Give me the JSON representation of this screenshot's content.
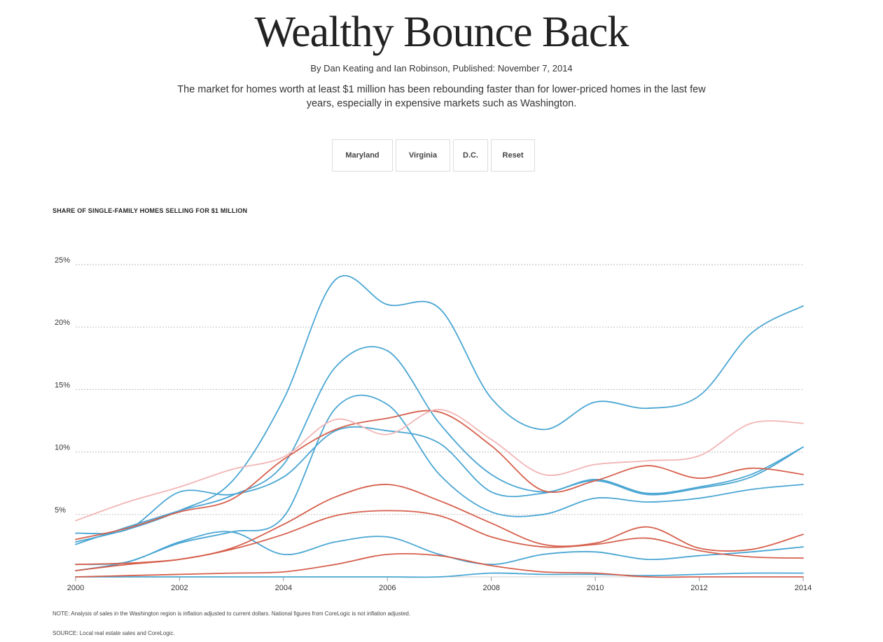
{
  "header": {
    "title": "Wealthy Bounce Back",
    "byline": "By Dan Keating and Ian Robinson, Published: November 7, 2014",
    "dek": "The market for homes worth at least $1 million has been rebounding faster than for lower-priced homes in the last few years, especially in expensive markets such as Washington."
  },
  "filters": [
    "Maryland",
    "Virginia",
    "D.C.",
    "Reset"
  ],
  "chart_label": "SHARE OF SINGLE-FAMILY HOMES SELLING FOR $1 MILLION",
  "footer": {
    "note": "NOTE: Analysis of sales in the Washington region is inflation adjusted to current dollars. National figures from CoreLogic is not inflation adjusted.",
    "source": "SOURCE: Local real estate sales and CoreLogic."
  },
  "chart_data": {
    "type": "line",
    "title": "SHARE OF SINGLE-FAMILY HOMES SELLING FOR $1 MILLION",
    "xlabel": "",
    "ylabel": "",
    "xlim": [
      2000,
      2014
    ],
    "ylim": [
      0,
      25
    ],
    "x_ticks": [
      2000,
      2002,
      2004,
      2006,
      2008,
      2010,
      2012,
      2014
    ],
    "x_tick_labels": [
      "2000",
      "2002",
      "2004",
      "2006",
      "2008",
      "2010",
      "2012",
      "2014"
    ],
    "y_ticks": [
      5,
      10,
      15,
      20,
      25
    ],
    "y_tick_labels": [
      "5%",
      "10%",
      "15%",
      "20%",
      "25%"
    ],
    "grid": "horizontal dotted",
    "colors": {
      "blue": "#4aa6d3",
      "red": "#d6604d",
      "pink": "#f2b5b5"
    },
    "x": [
      2000,
      2001,
      2002,
      2003,
      2004,
      2005,
      2006,
      2007,
      2008,
      2009,
      2010,
      2011,
      2012,
      2013,
      2014
    ],
    "series": [
      {
        "color": "blue",
        "values": [
          2.8,
          3.8,
          5.3,
          7.6,
          14.2,
          23.8,
          21.8,
          21.5,
          14.3,
          11.8,
          14.0,
          13.5,
          14.5,
          19.5,
          21.7
        ]
      },
      {
        "color": "blue",
        "values": [
          2.6,
          4.0,
          5.3,
          6.5,
          9.0,
          16.8,
          18.1,
          12.3,
          8.2,
          6.8,
          7.8,
          6.7,
          7.2,
          8.2,
          10.4
        ]
      },
      {
        "color": "blue",
        "values": [
          0.5,
          1.2,
          2.7,
          3.6,
          4.8,
          13.5,
          13.8,
          8.2,
          5.2,
          5.0,
          6.3,
          6.0,
          6.3,
          7.0,
          7.4
        ]
      },
      {
        "color": "blue",
        "values": [
          3.5,
          3.8,
          6.8,
          6.6,
          8.0,
          11.7,
          11.7,
          10.7,
          6.8,
          6.7,
          7.7,
          6.6,
          7.1,
          8.0,
          10.4
        ]
      },
      {
        "color": "blue",
        "values": [
          1.0,
          1.2,
          2.8,
          3.6,
          1.8,
          2.8,
          3.2,
          1.8,
          1.0,
          1.8,
          2.0,
          1.4,
          1.7,
          2.0,
          2.4
        ]
      },
      {
        "color": "blue",
        "values": [
          0.0,
          0.0,
          0.0,
          0.0,
          0.0,
          0.0,
          0.0,
          0.0,
          0.3,
          0.2,
          0.2,
          0.1,
          0.2,
          0.3,
          0.3
        ]
      },
      {
        "color": "red",
        "values": [
          3.0,
          3.9,
          5.2,
          6.2,
          9.4,
          11.8,
          12.7,
          13.2,
          10.5,
          6.9,
          7.7,
          8.9,
          7.9,
          8.7,
          8.2
        ]
      },
      {
        "color": "red",
        "values": [
          0.5,
          1.0,
          1.4,
          2.3,
          4.2,
          6.4,
          7.4,
          6.1,
          4.3,
          2.6,
          2.7,
          4.0,
          2.3,
          2.2,
          3.4
        ]
      },
      {
        "color": "red",
        "values": [
          1.0,
          1.1,
          1.4,
          2.2,
          3.4,
          4.9,
          5.3,
          4.9,
          3.2,
          2.4,
          2.6,
          3.1,
          2.1,
          1.6,
          1.5
        ]
      },
      {
        "color": "red",
        "values": [
          0.0,
          0.1,
          0.2,
          0.3,
          0.4,
          1.0,
          1.8,
          1.7,
          0.9,
          0.4,
          0.3,
          0.0,
          0.0,
          0.0,
          0.0
        ]
      },
      {
        "color": "pink",
        "values": [
          4.5,
          6.0,
          7.2,
          8.6,
          9.6,
          12.6,
          11.4,
          13.4,
          11.0,
          8.2,
          9.0,
          9.3,
          9.7,
          12.3,
          12.3
        ]
      }
    ]
  }
}
